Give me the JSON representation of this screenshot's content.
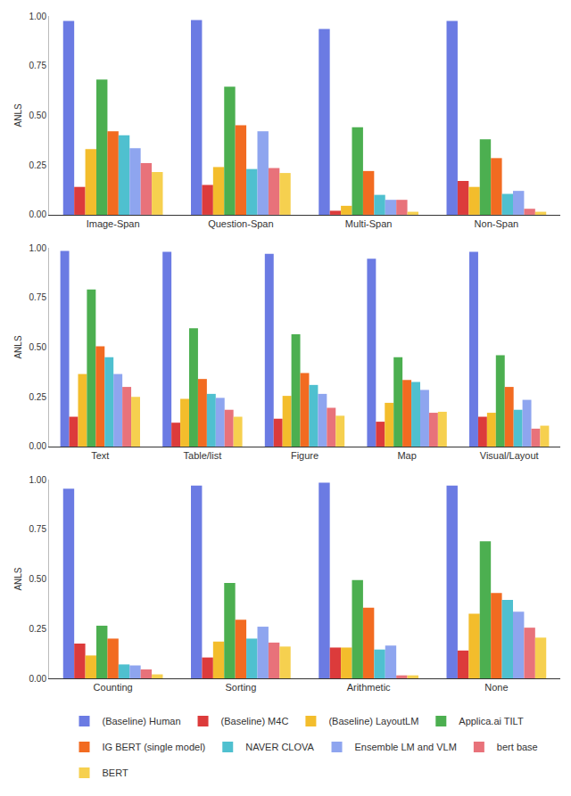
{
  "chart_data": [
    {
      "type": "bar",
      "y_label": "ANLS",
      "grid": false,
      "categories": [
        "Image-Span",
        "Question-Span",
        "Multi-Span",
        "Non-Span"
      ],
      "ylim": [
        0,
        1
      ],
      "yticks": [
        {
          "value": 0,
          "label": "0.00"
        },
        {
          "value": 0.25,
          "label": "0.25"
        },
        {
          "value": 0.5,
          "label": "0.50"
        },
        {
          "value": 0.75,
          "label": "0.75"
        },
        {
          "value": 1,
          "label": "1.00"
        }
      ],
      "series": [
        {
          "name": "(Baseline) Human",
          "color": "#6b7be3",
          "values": [
            0.975,
            0.98,
            0.935,
            0.975
          ]
        },
        {
          "name": "(Baseline) M4C",
          "color": "#dc3b3b",
          "values": [
            0.14,
            0.15,
            0.02,
            0.17
          ]
        },
        {
          "name": "(Baseline) LayoutLM",
          "color": "#f3bd2c",
          "values": [
            0.33,
            0.24,
            0.045,
            0.14
          ]
        },
        {
          "name": "Applica.ai TILT",
          "color": "#4caf50",
          "values": [
            0.68,
            0.645,
            0.44,
            0.38
          ]
        },
        {
          "name": "IG BERT (single model)",
          "color": "#f26b21",
          "values": [
            0.42,
            0.45,
            0.22,
            0.285
          ]
        },
        {
          "name": "NAVER CLOVA",
          "color": "#4fc0cf",
          "values": [
            0.4,
            0.23,
            0.1,
            0.105
          ]
        },
        {
          "name": "Ensemble LM and VLM",
          "color": "#8ea5ef",
          "values": [
            0.335,
            0.42,
            0.075,
            0.12
          ]
        },
        {
          "name": "bert base",
          "color": "#e8727a",
          "values": [
            0.26,
            0.235,
            0.075,
            0.03
          ]
        },
        {
          "name": "BERT",
          "color": "#f6d04f",
          "values": [
            0.215,
            0.21,
            0.015,
            0.015
          ]
        }
      ]
    },
    {
      "type": "bar",
      "y_label": "ANLS",
      "grid": false,
      "categories": [
        "Text",
        "Table/list",
        "Figure",
        "Map",
        "Visual/Layout"
      ],
      "ylim": [
        0,
        1
      ],
      "yticks": [
        {
          "value": 0,
          "label": "0.00"
        },
        {
          "value": 0.25,
          "label": "0.25"
        },
        {
          "value": 0.5,
          "label": "0.50"
        },
        {
          "value": 0.75,
          "label": "0.75"
        },
        {
          "value": 1,
          "label": "1.00"
        }
      ],
      "series": [
        {
          "name": "(Baseline) Human",
          "color": "#6b7be3",
          "values": [
            0.985,
            0.98,
            0.97,
            0.945,
            0.98
          ]
        },
        {
          "name": "(Baseline) M4C",
          "color": "#dc3b3b",
          "values": [
            0.15,
            0.12,
            0.14,
            0.125,
            0.15
          ]
        },
        {
          "name": "(Baseline) LayoutLM",
          "color": "#f3bd2c",
          "values": [
            0.365,
            0.24,
            0.255,
            0.22,
            0.17
          ]
        },
        {
          "name": "Applica.ai TILT",
          "color": "#4caf50",
          "values": [
            0.79,
            0.595,
            0.565,
            0.45,
            0.46
          ]
        },
        {
          "name": "IG BERT (single model)",
          "color": "#f26b21",
          "values": [
            0.505,
            0.34,
            0.37,
            0.335,
            0.3
          ]
        },
        {
          "name": "NAVER CLOVA",
          "color": "#4fc0cf",
          "values": [
            0.45,
            0.265,
            0.31,
            0.325,
            0.185
          ]
        },
        {
          "name": "Ensemble LM and VLM",
          "color": "#8ea5ef",
          "values": [
            0.365,
            0.245,
            0.265,
            0.285,
            0.235
          ]
        },
        {
          "name": "bert base",
          "color": "#e8727a",
          "values": [
            0.3,
            0.185,
            0.195,
            0.17,
            0.09
          ]
        },
        {
          "name": "BERT",
          "color": "#f6d04f",
          "values": [
            0.25,
            0.15,
            0.155,
            0.175,
            0.105
          ]
        }
      ]
    },
    {
      "type": "bar",
      "y_label": "ANLS",
      "grid": false,
      "legend": "bottom",
      "categories": [
        "Counting",
        "Sorting",
        "Arithmetic",
        "None"
      ],
      "ylim": [
        0,
        1
      ],
      "yticks": [
        {
          "value": 0,
          "label": "0.00"
        },
        {
          "value": 0.25,
          "label": "0.25"
        },
        {
          "value": 0.5,
          "label": "0.50"
        },
        {
          "value": 0.75,
          "label": "0.75"
        },
        {
          "value": 1,
          "label": "1.00"
        }
      ],
      "series": [
        {
          "name": "(Baseline) Human",
          "color": "#6b7be3",
          "values": [
            0.955,
            0.97,
            0.985,
            0.97
          ]
        },
        {
          "name": "(Baseline) M4C",
          "color": "#dc3b3b",
          "values": [
            0.175,
            0.105,
            0.155,
            0.14
          ]
        },
        {
          "name": "(Baseline) LayoutLM",
          "color": "#f3bd2c",
          "values": [
            0.115,
            0.185,
            0.155,
            0.325
          ]
        },
        {
          "name": "Applica.ai TILT",
          "color": "#4caf50",
          "values": [
            0.265,
            0.48,
            0.495,
            0.69
          ]
        },
        {
          "name": "IG BERT (single model)",
          "color": "#f26b21",
          "values": [
            0.2,
            0.295,
            0.355,
            0.43
          ]
        },
        {
          "name": "NAVER CLOVA",
          "color": "#4fc0cf",
          "values": [
            0.07,
            0.2,
            0.145,
            0.395
          ]
        },
        {
          "name": "Ensemble LM and VLM",
          "color": "#8ea5ef",
          "values": [
            0.065,
            0.26,
            0.165,
            0.335
          ]
        },
        {
          "name": "bert base",
          "color": "#e8727a",
          "values": [
            0.045,
            0.18,
            0.015,
            0.255
          ]
        },
        {
          "name": "BERT",
          "color": "#f6d04f",
          "values": [
            0.02,
            0.16,
            0.015,
            0.205
          ]
        }
      ]
    }
  ]
}
